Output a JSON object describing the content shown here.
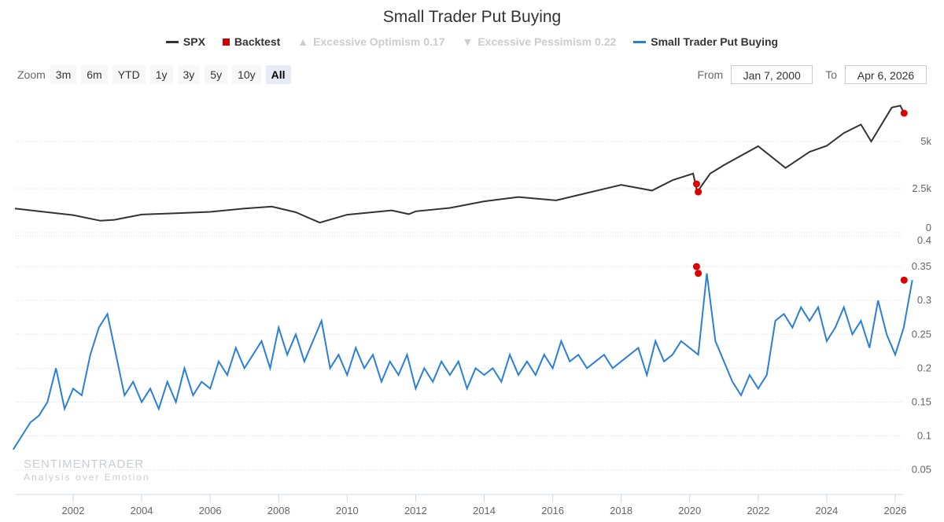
{
  "chart_data": {
    "type": "line",
    "title": "Small Trader Put Buying",
    "legend": [
      {
        "name": "SPX",
        "color": "#333333",
        "enabled": true,
        "marker": "line"
      },
      {
        "name": "Backtest",
        "color": "#cc0000",
        "enabled": true,
        "marker": "square"
      },
      {
        "name": "Excessive Optimism 0.17",
        "color": "#cccccc",
        "enabled": false,
        "marker": "triangle-up"
      },
      {
        "name": "Excessive Pessimism 0.22",
        "color": "#cccccc",
        "enabled": false,
        "marker": "triangle-down"
      },
      {
        "name": "Small Trader Put Buying",
        "color": "#2a7fd8",
        "enabled": true,
        "marker": "line"
      }
    ],
    "x_ticks": [
      "2002",
      "2004",
      "2006",
      "2008",
      "2010",
      "2012",
      "2014",
      "2016",
      "2018",
      "2020",
      "2022",
      "2024",
      "2026"
    ],
    "upper_panel": {
      "y_ticks": [
        "0",
        "2.5k",
        "5k"
      ],
      "ylim": [
        0,
        7000
      ],
      "spx": [
        [
          2000.3,
          1450
        ],
        [
          2001,
          1300
        ],
        [
          2002,
          1100
        ],
        [
          2002.8,
          800
        ],
        [
          2003.2,
          850
        ],
        [
          2004,
          1130
        ],
        [
          2005,
          1200
        ],
        [
          2006,
          1270
        ],
        [
          2007,
          1450
        ],
        [
          2007.8,
          1550
        ],
        [
          2008.5,
          1250
        ],
        [
          2009.2,
          700
        ],
        [
          2010,
          1120
        ],
        [
          2011.3,
          1350
        ],
        [
          2011.8,
          1150
        ],
        [
          2012,
          1300
        ],
        [
          2013,
          1480
        ],
        [
          2014,
          1830
        ],
        [
          2015,
          2060
        ],
        [
          2016.1,
          1880
        ],
        [
          2017,
          2270
        ],
        [
          2018,
          2700
        ],
        [
          2018.9,
          2400
        ],
        [
          2019.5,
          2950
        ],
        [
          2020.1,
          3300
        ],
        [
          2020.22,
          2330
        ],
        [
          2020.6,
          3300
        ],
        [
          2021,
          3750
        ],
        [
          2022,
          4750
        ],
        [
          2022.8,
          3600
        ],
        [
          2023.5,
          4450
        ],
        [
          2024,
          4770
        ],
        [
          2024.5,
          5450
        ],
        [
          2025,
          5900
        ],
        [
          2025.3,
          5000
        ],
        [
          2025.9,
          6800
        ],
        [
          2026.15,
          6900
        ],
        [
          2026.26,
          6500
        ]
      ],
      "backtest": [
        [
          2020.2,
          2750
        ],
        [
          2020.25,
          2330
        ],
        [
          2026.26,
          6500
        ]
      ]
    },
    "lower_panel": {
      "y_ticks": [
        "0.05",
        "0.1",
        "0.15",
        "0.2",
        "0.25",
        "0.3",
        "0.35",
        "0.4"
      ],
      "ylim": [
        0.015,
        0.4
      ],
      "start_year": 2000.25,
      "step_years": 0.25,
      "values": [
        0.08,
        0.1,
        0.12,
        0.13,
        0.15,
        0.2,
        0.14,
        0.17,
        0.16,
        0.22,
        0.26,
        0.28,
        0.22,
        0.16,
        0.18,
        0.15,
        0.17,
        0.14,
        0.18,
        0.15,
        0.2,
        0.16,
        0.18,
        0.17,
        0.21,
        0.19,
        0.23,
        0.2,
        0.22,
        0.24,
        0.2,
        0.26,
        0.22,
        0.25,
        0.21,
        0.24,
        0.27,
        0.2,
        0.22,
        0.19,
        0.23,
        0.2,
        0.22,
        0.18,
        0.21,
        0.19,
        0.22,
        0.17,
        0.2,
        0.18,
        0.21,
        0.19,
        0.21,
        0.17,
        0.2,
        0.19,
        0.2,
        0.18,
        0.22,
        0.19,
        0.21,
        0.19,
        0.22,
        0.2,
        0.24,
        0.21,
        0.22,
        0.2,
        0.21,
        0.22,
        0.2,
        0.21,
        0.22,
        0.23,
        0.19,
        0.24,
        0.21,
        0.22,
        0.24,
        0.23,
        0.22,
        0.34,
        0.24,
        0.21,
        0.18,
        0.16,
        0.19,
        0.17,
        0.19,
        0.27,
        0.28,
        0.26,
        0.29,
        0.27,
        0.29,
        0.24,
        0.26,
        0.29,
        0.25,
        0.27,
        0.23,
        0.3,
        0.25,
        0.22,
        0.26,
        0.33
      ],
      "backtest": [
        [
          2020.2,
          0.35
        ],
        [
          2020.25,
          0.34
        ],
        [
          2026.26,
          0.33
        ]
      ]
    }
  },
  "zoom": {
    "label": "Zoom",
    "buttons": [
      "3m",
      "6m",
      "YTD",
      "1y",
      "3y",
      "5y",
      "10y",
      "All"
    ],
    "active": "All"
  },
  "range": {
    "from_label": "From",
    "from": "Jan 7, 2000",
    "to_label": "To",
    "to": "Apr 6, 2026"
  },
  "watermark": {
    "brand": "SENTIMENTRADER",
    "tagline": "Analysis over Emotion"
  }
}
